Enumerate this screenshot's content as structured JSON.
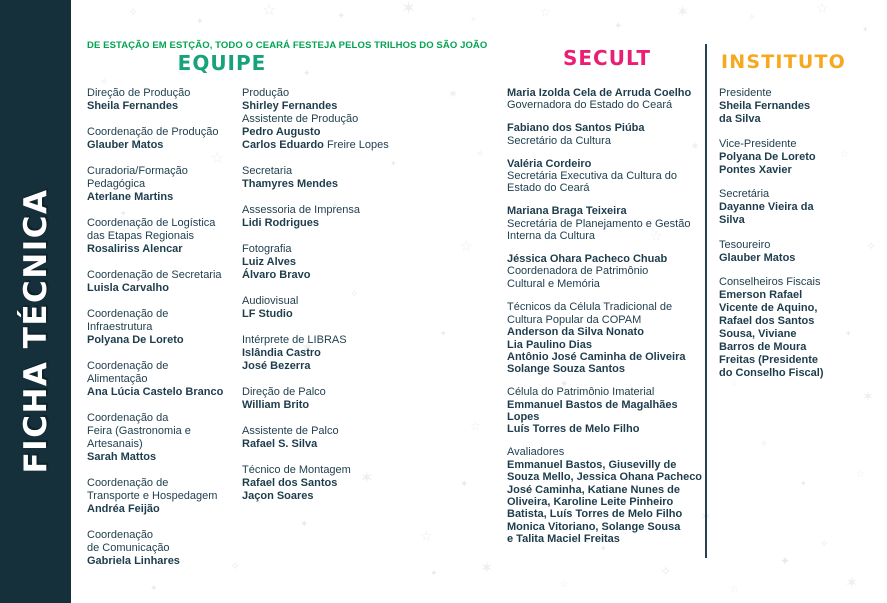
{
  "page": {
    "tagline": "DE ESTAÇÃO EM ESTÇÃO, TODO O CEARÁ FESTEJA PELOS TRILHOS DO SÃO JOÃO",
    "sidebar_title": "FICHA TÉCNICA"
  },
  "colors": {
    "sidebar_bg": "#15303b",
    "tagline_green": "#02a351",
    "equipe_green": "#16a37b",
    "secult_pink": "#eb1e75",
    "instituto_orange": "#f7a81f",
    "body_text": "#1e3d4c",
    "star_grey": "#e9e9e9"
  },
  "sections": {
    "equipe": {
      "title": "EQUIPE",
      "column1": [
        {
          "lines": [
            [
              "Direção de Produção",
              "r"
            ],
            [
              "Sheila Fernandes",
              "b"
            ]
          ]
        },
        {
          "lines": [
            [
              "Coordenação de Produção",
              "r"
            ],
            [
              "Glauber Matos",
              "b"
            ]
          ]
        },
        {
          "lines": [
            [
              "Curadoria/Formação",
              "r"
            ],
            [
              "Pedagógica",
              "r"
            ],
            [
              "Aterlane Martins",
              "b"
            ]
          ]
        },
        {
          "lines": [
            [
              "Coordenação de Logística",
              "r"
            ],
            [
              "das Etapas Regionais",
              "r"
            ],
            [
              "Rosaliriss Alencar",
              "b"
            ]
          ]
        },
        {
          "lines": [
            [
              "Coordenação de Secretaria",
              "r"
            ],
            [
              "Luisla Carvalho",
              "b"
            ]
          ]
        },
        {
          "lines": [
            [
              "Coordenação de",
              "r"
            ],
            [
              "Infraestrutura",
              "r"
            ],
            [
              "Polyana De Loreto",
              "b"
            ]
          ]
        },
        {
          "lines": [
            [
              "Coordenação de",
              "r"
            ],
            [
              "Alimentação",
              "r"
            ],
            [
              "Ana Lúcia Castelo Branco",
              "b"
            ]
          ]
        },
        {
          "lines": [
            [
              "Coordenação da",
              "r"
            ],
            [
              "Feira (Gastronomia e",
              "r"
            ],
            [
              "Artesanais)",
              "r"
            ],
            [
              "Sarah Mattos",
              "b"
            ]
          ]
        },
        {
          "lines": [
            [
              "Coordenação de",
              "r"
            ],
            [
              "Transporte e Hospedagem",
              "r"
            ],
            [
              "Andréa Feijão",
              "b"
            ]
          ]
        },
        {
          "lines": [
            [
              "Coordenação",
              "r"
            ],
            [
              "de Comunicação",
              "r"
            ],
            [
              "Gabriela Linhares",
              "b"
            ]
          ]
        }
      ],
      "column2": [
        {
          "lines": [
            [
              "Produção",
              "r"
            ],
            [
              "Shirley Fernandes",
              "b"
            ],
            [
              "Assistente de Produção",
              "r"
            ],
            [
              "Pedro Augusto",
              "b"
            ],
            [
              "Carlos Eduardo",
              "b",
              " Freire Lopes"
            ]
          ]
        },
        {
          "lines": [
            [
              "Secretaria",
              "r"
            ],
            [
              "Thamyres Mendes",
              "b"
            ]
          ]
        },
        {
          "lines": [
            [
              "Assessoria de Imprensa",
              "r"
            ],
            [
              "Lidi Rodrigues",
              "b"
            ]
          ]
        },
        {
          "lines": [
            [
              "Fotografia",
              "r"
            ],
            [
              "Luiz Alves",
              "b"
            ],
            [
              "Álvaro Bravo",
              "b"
            ]
          ]
        },
        {
          "lines": [
            [
              "Audiovisual",
              "r"
            ],
            [
              "LF Studio",
              "b"
            ]
          ]
        },
        {
          "lines": [
            [
              "Intérprete de LIBRAS",
              "r"
            ],
            [
              "Islândia Castro",
              "b"
            ],
            [
              "José Bezerra",
              "b"
            ]
          ]
        },
        {
          "lines": [
            [
              "Direção de Palco",
              "r"
            ],
            [
              "William Brito",
              "b"
            ]
          ]
        },
        {
          "lines": [
            [
              "Assistente de Palco",
              "r"
            ],
            [
              "Rafael S. Silva",
              "b"
            ]
          ]
        },
        {
          "lines": [
            [
              "Técnico de Montagem",
              "r"
            ],
            [
              "Rafael dos Santos",
              "b"
            ],
            [
              "Jaçon Soares",
              "b"
            ]
          ]
        }
      ]
    },
    "secult": {
      "title": "SECULT",
      "entries": [
        {
          "lines": [
            [
              "Maria Izolda Cela de Arruda Coelho",
              "b"
            ],
            [
              "Governadora do Estado do Ceará",
              "r"
            ]
          ]
        },
        {
          "lines": [
            [
              "Fabiano dos Santos Piúba",
              "b"
            ],
            [
              "Secretário da Cultura",
              "r"
            ]
          ]
        },
        {
          "lines": [
            [
              "Valéria Cordeiro",
              "b"
            ],
            [
              "Secretária Executiva da Cultura do",
              "r"
            ],
            [
              "Estado do Ceará",
              "r"
            ]
          ]
        },
        {
          "lines": [
            [
              "Mariana Braga Teixeira",
              "b"
            ],
            [
              "Secretária de Planejamento e Gestão",
              "r"
            ],
            [
              "Interna da Cultura",
              "r"
            ]
          ]
        },
        {
          "lines": [
            [
              "Jéssica Ohara Pacheco Chuab",
              "b"
            ],
            [
              "Coordenadora de Patrimônio",
              "r"
            ],
            [
              "Cultural e Memória",
              "r"
            ]
          ]
        },
        {
          "extra_gap": true,
          "lines": [
            [
              "Técnicos da Célula Tradicional de",
              "r"
            ],
            [
              "Cultura Popular da COPAM",
              "r"
            ],
            [
              "Anderson da Silva Nonato",
              "b"
            ],
            [
              "Lia Paulino Dias",
              "b"
            ],
            [
              "Antônio José Caminha de Oliveira",
              "b"
            ],
            [
              "Solange Souza Santos",
              "b"
            ]
          ]
        },
        {
          "lines": [
            [
              "Célula do Patrimônio Imaterial",
              "r"
            ],
            [
              "Emmanuel Bastos de Magalhães",
              "b"
            ],
            [
              "Lopes",
              "b"
            ],
            [
              "Luís Torres de Melo Filho",
              "b"
            ]
          ]
        },
        {
          "lines": [
            [
              "Avaliadores",
              "r"
            ],
            [
              "Emmanuel Bastos, Giusevilly de",
              "b"
            ],
            [
              "Souza Mello, Jessica Ohana Pacheco",
              "b"
            ],
            [
              "José Caminha, Katiane Nunes de",
              "b"
            ],
            [
              "Oliveira, Karoline Leite Pinheiro",
              "b"
            ],
            [
              "Batista, Luís Torres de Melo Filho",
              "b"
            ],
            [
              "Monica Vitoriano, Solange Sousa",
              "b"
            ],
            [
              "e Talita Maciel Freitas",
              "b"
            ]
          ]
        }
      ]
    },
    "instituto": {
      "title": "INSTITUTO",
      "entries": [
        {
          "lines": [
            [
              "Presidente",
              "r"
            ],
            [
              "Sheila Fernandes",
              "b"
            ],
            [
              "da Silva",
              "b"
            ]
          ]
        },
        {
          "lines": [
            [
              "Vice-Presidente",
              "r"
            ],
            [
              "Polyana De Loreto",
              "b"
            ],
            [
              "Pontes Xavier",
              "b"
            ]
          ]
        },
        {
          "lines": [
            [
              "Secretária",
              "r"
            ],
            [
              "Dayanne Vieira da",
              "b"
            ],
            [
              "Silva",
              "b"
            ]
          ]
        },
        {
          "lines": [
            [
              "Tesoureiro",
              "r"
            ],
            [
              "Glauber Matos",
              "b"
            ]
          ]
        },
        {
          "lines": [
            [
              "Conselheiros Fiscais",
              "r"
            ],
            [
              "Emerson Rafael",
              "b"
            ],
            [
              "Vicente de Aquino,",
              "b"
            ],
            [
              "Rafael dos Santos",
              "b"
            ],
            [
              "Sousa, Viviane",
              "b"
            ],
            [
              "Barros de Moura",
              "b"
            ],
            [
              "Freitas (Presidente",
              "b"
            ],
            [
              "do Conselho Fiscal)",
              "b"
            ]
          ]
        }
      ]
    }
  }
}
